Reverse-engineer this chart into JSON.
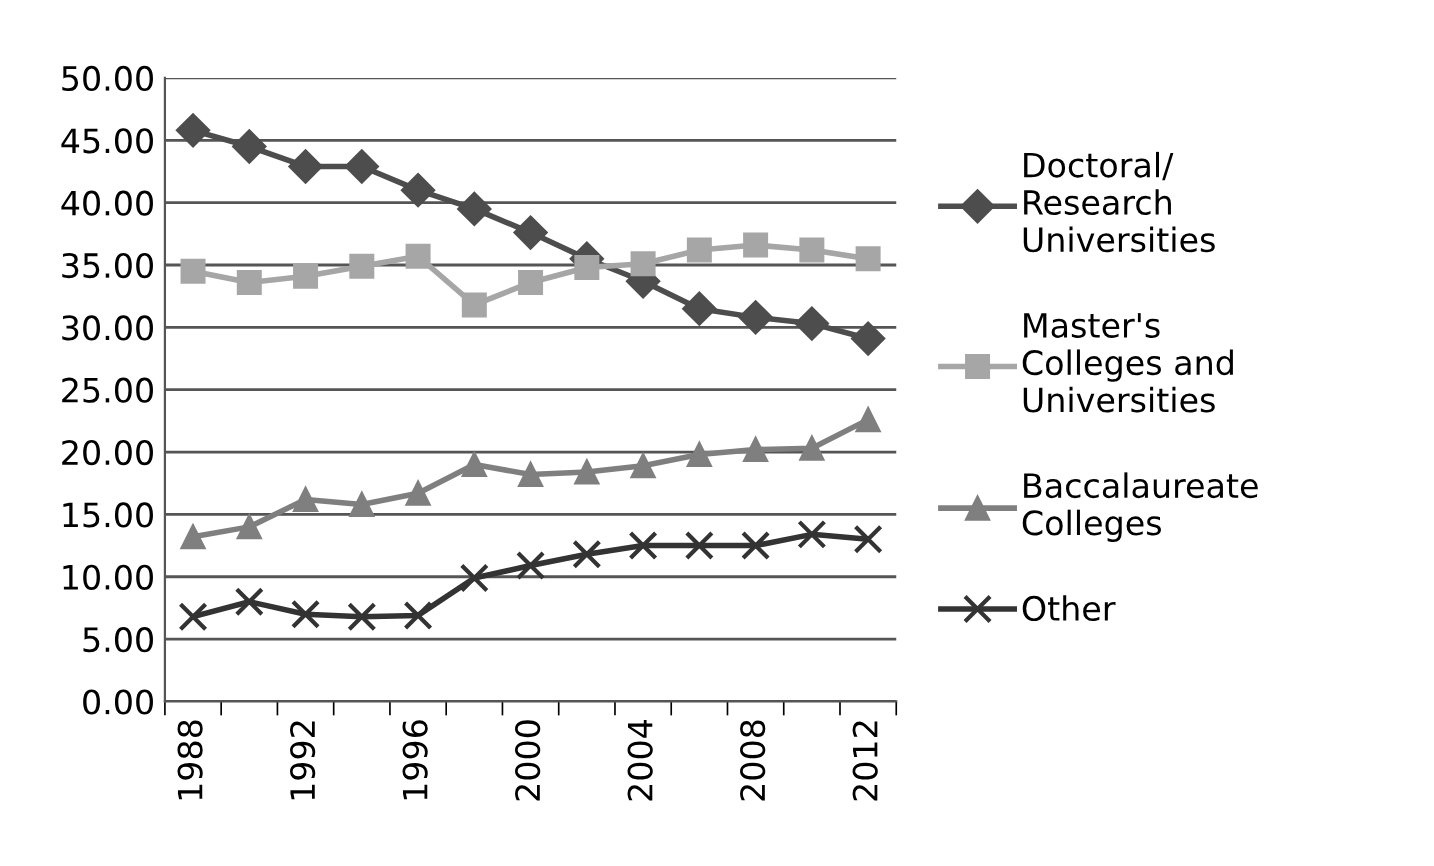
{
  "chart_data": {
    "type": "line",
    "categories": [
      "1988",
      null,
      "1992",
      null,
      "1996",
      null,
      "2000",
      null,
      "2004",
      null,
      "2008",
      null,
      "2012"
    ],
    "series": [
      {
        "name": "Doctoral/\nResearch\nUniversities",
        "color": "#4d4d4d",
        "marker": "diamond",
        "values": [
          45.8,
          44.5,
          42.9,
          42.9,
          41.0,
          39.5,
          37.6,
          35.5,
          33.7,
          31.5,
          30.8,
          30.3,
          29.1
        ]
      },
      {
        "name": "Master's\nColleges and\nUniversities",
        "color": "#a6a6a6",
        "marker": "square",
        "values": [
          34.5,
          33.6,
          34.1,
          34.9,
          35.7,
          31.8,
          33.6,
          34.8,
          35.1,
          36.2,
          36.6,
          36.2,
          35.5
        ]
      },
      {
        "name": "Baccalaureate\nColleges",
        "color": "#7f7f7f",
        "marker": "triangle",
        "values": [
          13.2,
          14.0,
          16.2,
          15.8,
          16.7,
          19.0,
          18.2,
          18.4,
          18.9,
          19.8,
          20.2,
          20.3,
          22.6
        ]
      },
      {
        "name": "Other",
        "color": "#333333",
        "marker": "cross",
        "values": [
          6.8,
          8.0,
          7.0,
          6.8,
          6.9,
          9.9,
          10.9,
          11.8,
          12.5,
          12.5,
          12.5,
          13.4,
          13.0
        ]
      }
    ],
    "ylim": [
      0,
      50
    ],
    "yticks": [
      {
        "value": 0,
        "label": "0.00"
      },
      {
        "value": 5,
        "label": "5.00"
      },
      {
        "value": 10,
        "label": "10.00"
      },
      {
        "value": 15,
        "label": "15.00"
      },
      {
        "value": 20,
        "label": "20.00"
      },
      {
        "value": 25,
        "label": "25.00"
      },
      {
        "value": 30,
        "label": "30.00"
      },
      {
        "value": 35,
        "label": "35.00"
      },
      {
        "value": 40,
        "label": "40.00"
      },
      {
        "value": 45,
        "label": "45.00"
      },
      {
        "value": 50,
        "label": "50.00"
      }
    ],
    "grid": "y",
    "legend": "right",
    "line_style": "solid"
  }
}
